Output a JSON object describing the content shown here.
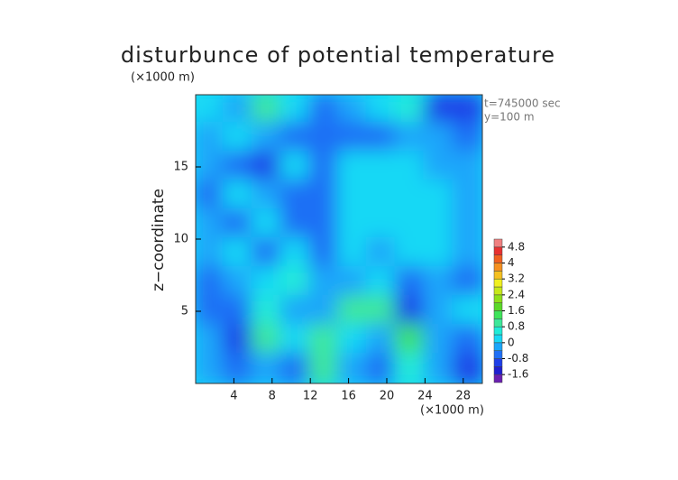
{
  "chart_data": {
    "type": "contour",
    "title": "disturbunce of potential temperature",
    "y_unit": "(×1000 m)",
    "x_unit": "(×1000 m)",
    "ylabel": "z−coordinate",
    "annotations": [
      "t=745000 sec",
      "y=100 m"
    ],
    "xlim": [
      0,
      30
    ],
    "ylim": [
      0,
      20
    ],
    "xticks": [
      4,
      8,
      12,
      16,
      20,
      24,
      28
    ],
    "yticks": [
      5,
      10,
      15
    ],
    "x": [
      1.5,
      4.5,
      7.5,
      10.5,
      13.5,
      16.5,
      19.5,
      22.5,
      25.5,
      28.5
    ],
    "y": [
      19,
      17,
      15,
      13,
      11,
      9,
      7,
      5,
      3,
      1
    ],
    "z": [
      [
        0,
        -0.3,
        0.8,
        0,
        -0.5,
        -0.3,
        0.3,
        0.6,
        -1.0,
        -1.2
      ],
      [
        -0.3,
        0,
        -0.2,
        -0.7,
        -0.5,
        -0.8,
        -0.7,
        -0.2,
        -0.3,
        -0.6
      ],
      [
        -0.2,
        -0.5,
        -0.9,
        0.1,
        -0.8,
        0.1,
        0.2,
        0,
        -0.2,
        -0.4
      ],
      [
        -0.5,
        0,
        -0.4,
        -0.7,
        -0.7,
        0.1,
        0.2,
        0.1,
        0,
        -0.3
      ],
      [
        -0.3,
        -0.8,
        0.2,
        -0.5,
        -0.5,
        0.2,
        0,
        0.2,
        0.1,
        -0.3
      ],
      [
        -0.2,
        0.2,
        -0.5,
        0.3,
        -0.6,
        0.1,
        -0.3,
        0,
        0.1,
        -0.4
      ],
      [
        -0.6,
        -0.3,
        0,
        0.6,
        -0.4,
        -0.3,
        0,
        -0.5,
        -0.2,
        -0.5
      ],
      [
        -0.8,
        -0.6,
        0.5,
        -0.4,
        -0.3,
        0.9,
        1.1,
        -0.9,
        -0.3,
        0
      ],
      [
        -0.4,
        -1.2,
        0.8,
        0,
        0.8,
        0,
        -0.3,
        1.2,
        -0.4,
        -0.6
      ],
      [
        -0.3,
        -0.5,
        -0.3,
        -0.6,
        0.8,
        -0.3,
        -0.5,
        0.6,
        -0.3,
        -1.0
      ]
    ],
    "levels": [
      -2.0,
      -1.6,
      -1.2,
      -0.8,
      -0.4,
      0,
      0.4,
      0.8,
      1.2,
      1.6,
      2.0,
      2.4,
      2.8,
      3.2,
      3.6,
      4.0,
      4.4,
      4.8,
      5.2
    ],
    "colors": [
      "#6a1fb0",
      "#1f1fd0",
      "#1e3fe8",
      "#1f6ff5",
      "#1aa6fa",
      "#17d8f5",
      "#20ecd8",
      "#3de89a",
      "#3de45a",
      "#5ad828",
      "#8ee01a",
      "#c6e81a",
      "#f0f020",
      "#f5c020",
      "#f59020",
      "#f06020",
      "#e83030",
      "#f08080"
    ],
    "colorbar_ticks": [
      4.8,
      4,
      3.2,
      2.4,
      1.6,
      0.8,
      0,
      -0.8,
      -1.6
    ]
  }
}
